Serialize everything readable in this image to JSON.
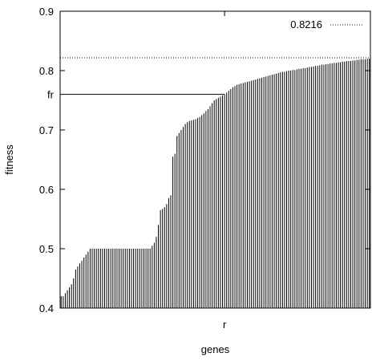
{
  "chart_data": {
    "type": "bar",
    "title": "",
    "xlabel": "genes",
    "ylabel": "fitness",
    "ylim": [
      0.4,
      0.9
    ],
    "yticks": [
      "0.4",
      "0.5",
      "0.6",
      "0.7",
      "0.8",
      "0.9"
    ],
    "yticks_values": [
      0.4,
      0.5,
      0.6,
      0.7,
      0.8,
      0.9
    ],
    "xtick_label": "r",
    "fr_label": "fr",
    "fr_value": 0.76,
    "reference_line": {
      "label": "0.8216",
      "value": 0.8216,
      "style": "dotted"
    },
    "legend_position": "top-right",
    "grid": false,
    "bar_color": "#000000",
    "values": [
      0.42,
      0.42,
      0.425,
      0.43,
      0.435,
      0.44,
      0.45,
      0.465,
      0.47,
      0.475,
      0.48,
      0.485,
      0.49,
      0.495,
      0.5,
      0.5,
      0.5,
      0.5,
      0.5,
      0.5,
      0.5,
      0.5,
      0.5,
      0.5,
      0.5,
      0.5,
      0.5,
      0.5,
      0.5,
      0.5,
      0.5,
      0.5,
      0.5,
      0.5,
      0.5,
      0.5,
      0.5,
      0.5,
      0.5,
      0.5,
      0.5,
      0.5,
      0.5,
      0.5,
      0.505,
      0.51,
      0.52,
      0.54,
      0.565,
      0.567,
      0.57,
      0.575,
      0.585,
      0.59,
      0.655,
      0.66,
      0.69,
      0.695,
      0.7,
      0.705,
      0.71,
      0.713,
      0.715,
      0.716,
      0.717,
      0.718,
      0.72,
      0.722,
      0.725,
      0.728,
      0.732,
      0.735,
      0.74,
      0.745,
      0.75,
      0.752,
      0.754,
      0.756,
      0.758,
      0.76,
      0.763,
      0.766,
      0.769,
      0.772,
      0.774,
      0.776,
      0.777,
      0.778,
      0.779,
      0.78,
      0.781,
      0.782,
      0.783,
      0.784,
      0.785,
      0.786,
      0.787,
      0.788,
      0.789,
      0.79,
      0.791,
      0.792,
      0.793,
      0.794,
      0.795,
      0.796,
      0.797,
      0.798,
      0.798,
      0.799,
      0.8,
      0.8,
      0.801,
      0.801,
      0.802,
      0.803,
      0.803,
      0.804,
      0.804,
      0.805,
      0.806,
      0.806,
      0.807,
      0.808,
      0.808,
      0.809,
      0.81,
      0.81,
      0.811,
      0.811,
      0.812,
      0.812,
      0.813,
      0.813,
      0.814,
      0.814,
      0.815,
      0.815,
      0.816,
      0.816,
      0.816,
      0.817,
      0.817,
      0.818,
      0.818,
      0.819,
      0.819,
      0.819,
      0.82,
      0.82
    ]
  }
}
